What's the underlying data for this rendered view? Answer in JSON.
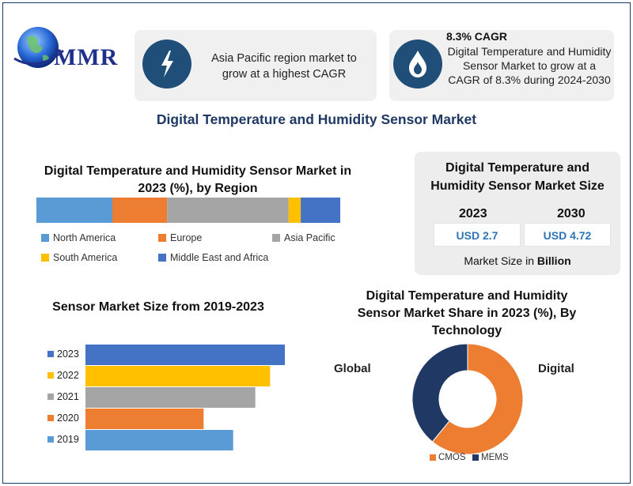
{
  "logo": {
    "text": "MMR"
  },
  "highlights": [
    {
      "text": "Asia Pacific region market to grow at a highest CAGR"
    },
    {
      "title": "8.3% CAGR",
      "text": "Digital Temperature and Humidity Sensor Market to grow at a CAGR of 8.3% during 2024-2030"
    }
  ],
  "main_title": "Digital Temperature and Humidity Sensor Market",
  "market_size": {
    "title": "Digital Temperature and Humidity Sensor Market Size",
    "year1": "2023",
    "year2": "2030",
    "value1": "USD 2.7",
    "value2": "USD 4.72",
    "note_prefix": "Market Size in ",
    "note_bold": "Billion"
  },
  "colors": {
    "blue": "#5b9bd5",
    "orange": "#ed7d31",
    "gray": "#a5a5a5",
    "yellow": "#ffc000",
    "darkblue": "#4472c4",
    "navy": "#1f3864"
  },
  "chart_data": [
    {
      "type": "bar",
      "orientation": "horizontal-stacked-100",
      "title": "Digital Temperature and Humidity Sensor Market in 2023 (%), by Region",
      "series": [
        {
          "name": "North America",
          "value": 25,
          "color": "#5b9bd5"
        },
        {
          "name": "Europe",
          "value": 18,
          "color": "#ed7d31"
        },
        {
          "name": "Asia Pacific",
          "value": 40,
          "color": "#a5a5a5"
        },
        {
          "name": "South America",
          "value": 4,
          "color": "#ffc000"
        },
        {
          "name": "Middle East and Africa",
          "value": 13,
          "color": "#4472c4"
        }
      ],
      "xlim": [
        0,
        100
      ]
    },
    {
      "type": "bar",
      "orientation": "horizontal",
      "title": "Sensor Market Size from 2019-2023",
      "categories": [
        "2023",
        "2022",
        "2021",
        "2020",
        "2019"
      ],
      "values": [
        2.7,
        2.5,
        2.3,
        1.6,
        2.0
      ],
      "colors": [
        "#4472c4",
        "#ffc000",
        "#a5a5a5",
        "#ed7d31",
        "#5b9bd5"
      ],
      "xlim": [
        0,
        3.0
      ]
    },
    {
      "type": "pie",
      "variant": "donut",
      "title": "Digital Temperature and Humidity Sensor Market Share in 2023 (%), By Technology",
      "labels": [
        "CMOS",
        "MEMS"
      ],
      "values": [
        61,
        39
      ],
      "colors": [
        "#ed7d31",
        "#1f3864"
      ],
      "annotations": [
        "Global",
        "Digital"
      ]
    }
  ]
}
